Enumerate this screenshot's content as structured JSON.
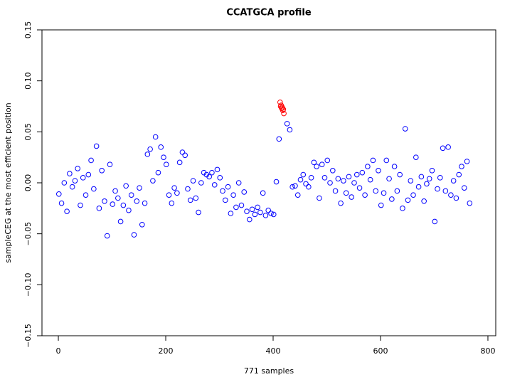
{
  "chart_data": {
    "type": "scatter",
    "title": "CCATGCA profile",
    "x_label": "771 samples",
    "y_label": "sampleCEG at the most efficient position",
    "xlim": [
      -30.5,
      814.6
    ],
    "ylim": [
      -0.15,
      0.15
    ],
    "xticks": [
      0,
      200,
      400,
      600,
      800
    ],
    "yticks": [
      {
        "value": -0.15,
        "label": "−0.15"
      },
      {
        "value": -0.1,
        "label": "−0.10"
      },
      {
        "value": -0.05,
        "label": "−0.05"
      },
      {
        "value": 0,
        "label": "0.00"
      },
      0.05,
      {
        "value": 0.1,
        "label": "0.10"
      },
      0.15
    ],
    "series": [
      {
        "color": "#0000ff",
        "x": [
          1,
          6,
          11,
          16,
          21,
          26,
          31,
          36,
          41,
          46,
          51,
          56,
          61,
          66,
          71,
          76,
          81,
          86,
          91,
          96,
          101,
          106,
          111,
          116,
          121,
          126,
          131,
          136,
          141,
          146,
          151,
          156,
          161,
          166,
          171,
          176,
          181,
          186,
          191,
          196,
          201,
          206,
          211,
          216,
          221,
          226,
          231,
          236,
          241,
          246,
          251,
          256,
          261,
          266,
          271,
          276,
          281,
          286,
          291,
          296,
          301,
          306,
          311,
          316,
          321,
          326,
          331,
          336,
          341,
          346,
          351,
          356,
          361,
          366,
          371,
          376,
          381,
          386,
          391,
          396,
          401,
          406,
          411,
          426,
          431,
          436,
          441,
          446,
          451,
          456,
          461,
          466,
          471,
          476,
          481,
          486,
          491,
          496,
          501,
          506,
          511,
          516,
          521,
          526,
          531,
          536,
          541,
          546,
          551,
          556,
          561,
          566,
          571,
          576,
          581,
          586,
          591,
          596,
          601,
          606,
          611,
          616,
          621,
          626,
          631,
          636,
          641,
          646,
          651,
          656,
          661,
          666,
          671,
          676,
          681,
          686,
          691,
          696,
          701,
          706,
          711,
          716,
          721,
          726,
          731,
          736,
          741,
          746,
          751,
          756,
          761,
          766
        ],
        "values": [
          -0.011,
          -0.02,
          0.0,
          -0.028,
          0.009,
          -0.004,
          0.002,
          0.014,
          -0.022,
          0.005,
          -0.012,
          0.008,
          0.022,
          -0.006,
          0.036,
          -0.025,
          0.012,
          -0.018,
          -0.052,
          0.018,
          -0.021,
          -0.008,
          -0.015,
          -0.038,
          -0.022,
          -0.003,
          -0.027,
          -0.012,
          -0.051,
          -0.018,
          -0.005,
          -0.041,
          -0.02,
          0.028,
          0.033,
          0.002,
          0.045,
          0.01,
          0.035,
          0.025,
          0.018,
          -0.012,
          -0.02,
          -0.005,
          -0.01,
          0.02,
          0.03,
          0.027,
          -0.006,
          -0.017,
          0.002,
          -0.015,
          -0.029,
          0.0,
          0.01,
          0.008,
          0.006,
          0.01,
          -0.002,
          0.013,
          0.005,
          -0.008,
          -0.017,
          -0.004,
          -0.03,
          -0.012,
          -0.024,
          0.0,
          -0.022,
          -0.009,
          -0.028,
          -0.036,
          -0.026,
          -0.031,
          -0.024,
          -0.029,
          -0.01,
          -0.032,
          -0.027,
          -0.03,
          -0.031,
          0.001,
          0.043,
          0.058,
          0.052,
          -0.004,
          -0.003,
          -0.012,
          0.003,
          0.008,
          -0.001,
          -0.004,
          0.005,
          0.02,
          0.016,
          -0.015,
          0.018,
          0.005,
          0.022,
          0.0,
          0.012,
          -0.008,
          0.004,
          -0.02,
          0.002,
          -0.01,
          0.006,
          -0.014,
          0.0,
          0.008,
          -0.005,
          0.01,
          -0.012,
          0.016,
          0.003,
          0.022,
          -0.008,
          0.012,
          -0.022,
          -0.01,
          0.022,
          0.004,
          -0.016,
          0.016,
          -0.008,
          0.008,
          -0.025,
          0.053,
          -0.017,
          0.002,
          -0.012,
          0.025,
          -0.004,
          0.006,
          -0.018,
          -0.001,
          0.004,
          0.012,
          -0.038,
          -0.006,
          0.005,
          0.034,
          -0.008,
          0.035,
          -0.012,
          0.002,
          -0.015,
          0.008,
          0.016,
          -0.005,
          0.021,
          -0.02
        ]
      },
      {
        "color": "#ff0000",
        "x": [
          413,
          414,
          415,
          416,
          417,
          418,
          419,
          420
        ],
        "values": [
          0.079,
          0.075,
          0.076,
          0.073,
          0.074,
          0.071,
          0.072,
          0.068
        ]
      }
    ]
  }
}
